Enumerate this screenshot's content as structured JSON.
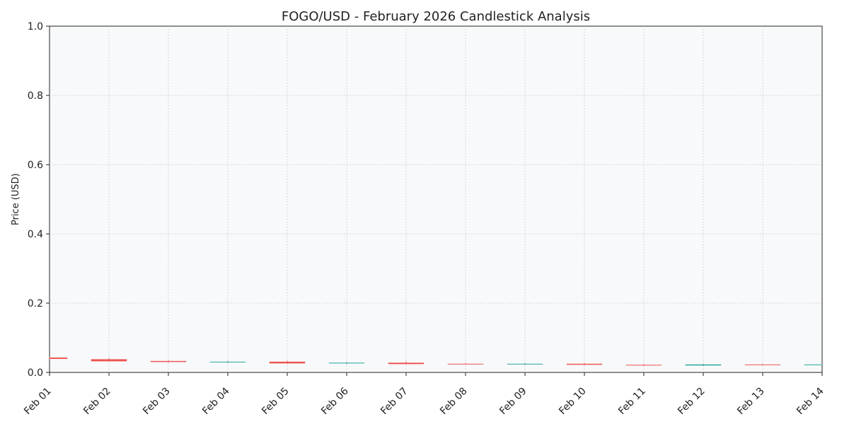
{
  "chart_data": {
    "type": "candlestick",
    "title": "FOGO/USD - February 2026 Candlestick Analysis",
    "xlabel": "",
    "ylabel": "Price (USD)",
    "ylim": [
      0,
      1.0
    ],
    "yticks": [
      "0.0",
      "0.2",
      "0.4",
      "0.6",
      "0.8",
      "1.0"
    ],
    "grid": true,
    "categories": [
      "Feb 01",
      "Feb 02",
      "Feb 03",
      "Feb 04",
      "Feb 05",
      "Feb 06",
      "Feb 07",
      "Feb 08",
      "Feb 09",
      "Feb 10",
      "Feb 11",
      "Feb 12",
      "Feb 13",
      "Feb 14"
    ],
    "candles": [
      {
        "date": "Feb 01",
        "open": 0.043,
        "high": 0.044,
        "low": 0.038,
        "close": 0.039
      },
      {
        "date": "Feb 02",
        "open": 0.038,
        "high": 0.041,
        "low": 0.031,
        "close": 0.032
      },
      {
        "date": "Feb 03",
        "open": 0.033,
        "high": 0.035,
        "low": 0.029,
        "close": 0.03
      },
      {
        "date": "Feb 04",
        "open": 0.03,
        "high": 0.033,
        "low": 0.028,
        "close": 0.031
      },
      {
        "date": "Feb 05",
        "open": 0.031,
        "high": 0.033,
        "low": 0.025,
        "close": 0.026
      },
      {
        "date": "Feb 06",
        "open": 0.026,
        "high": 0.03,
        "low": 0.024,
        "close": 0.028
      },
      {
        "date": "Feb 07",
        "open": 0.028,
        "high": 0.031,
        "low": 0.023,
        "close": 0.024
      },
      {
        "date": "Feb 08",
        "open": 0.025,
        "high": 0.027,
        "low": 0.023,
        "close": 0.024
      },
      {
        "date": "Feb 09",
        "open": 0.024,
        "high": 0.027,
        "low": 0.022,
        "close": 0.025
      },
      {
        "date": "Feb 10",
        "open": 0.025,
        "high": 0.027,
        "low": 0.021,
        "close": 0.022
      },
      {
        "date": "Feb 11",
        "open": 0.022,
        "high": 0.024,
        "low": 0.019,
        "close": 0.02
      },
      {
        "date": "Feb 12",
        "open": 0.02,
        "high": 0.024,
        "low": 0.019,
        "close": 0.023
      },
      {
        "date": "Feb 13",
        "open": 0.023,
        "high": 0.024,
        "low": 0.021,
        "close": 0.022
      },
      {
        "date": "Feb 14",
        "open": 0.022,
        "high": 0.024,
        "low": 0.021,
        "close": 0.023
      }
    ],
    "colors": {
      "up": "#26a69a",
      "down": "#ef5350",
      "plot_bg": "#f8f9fb",
      "grid": "#cccccc"
    }
  }
}
